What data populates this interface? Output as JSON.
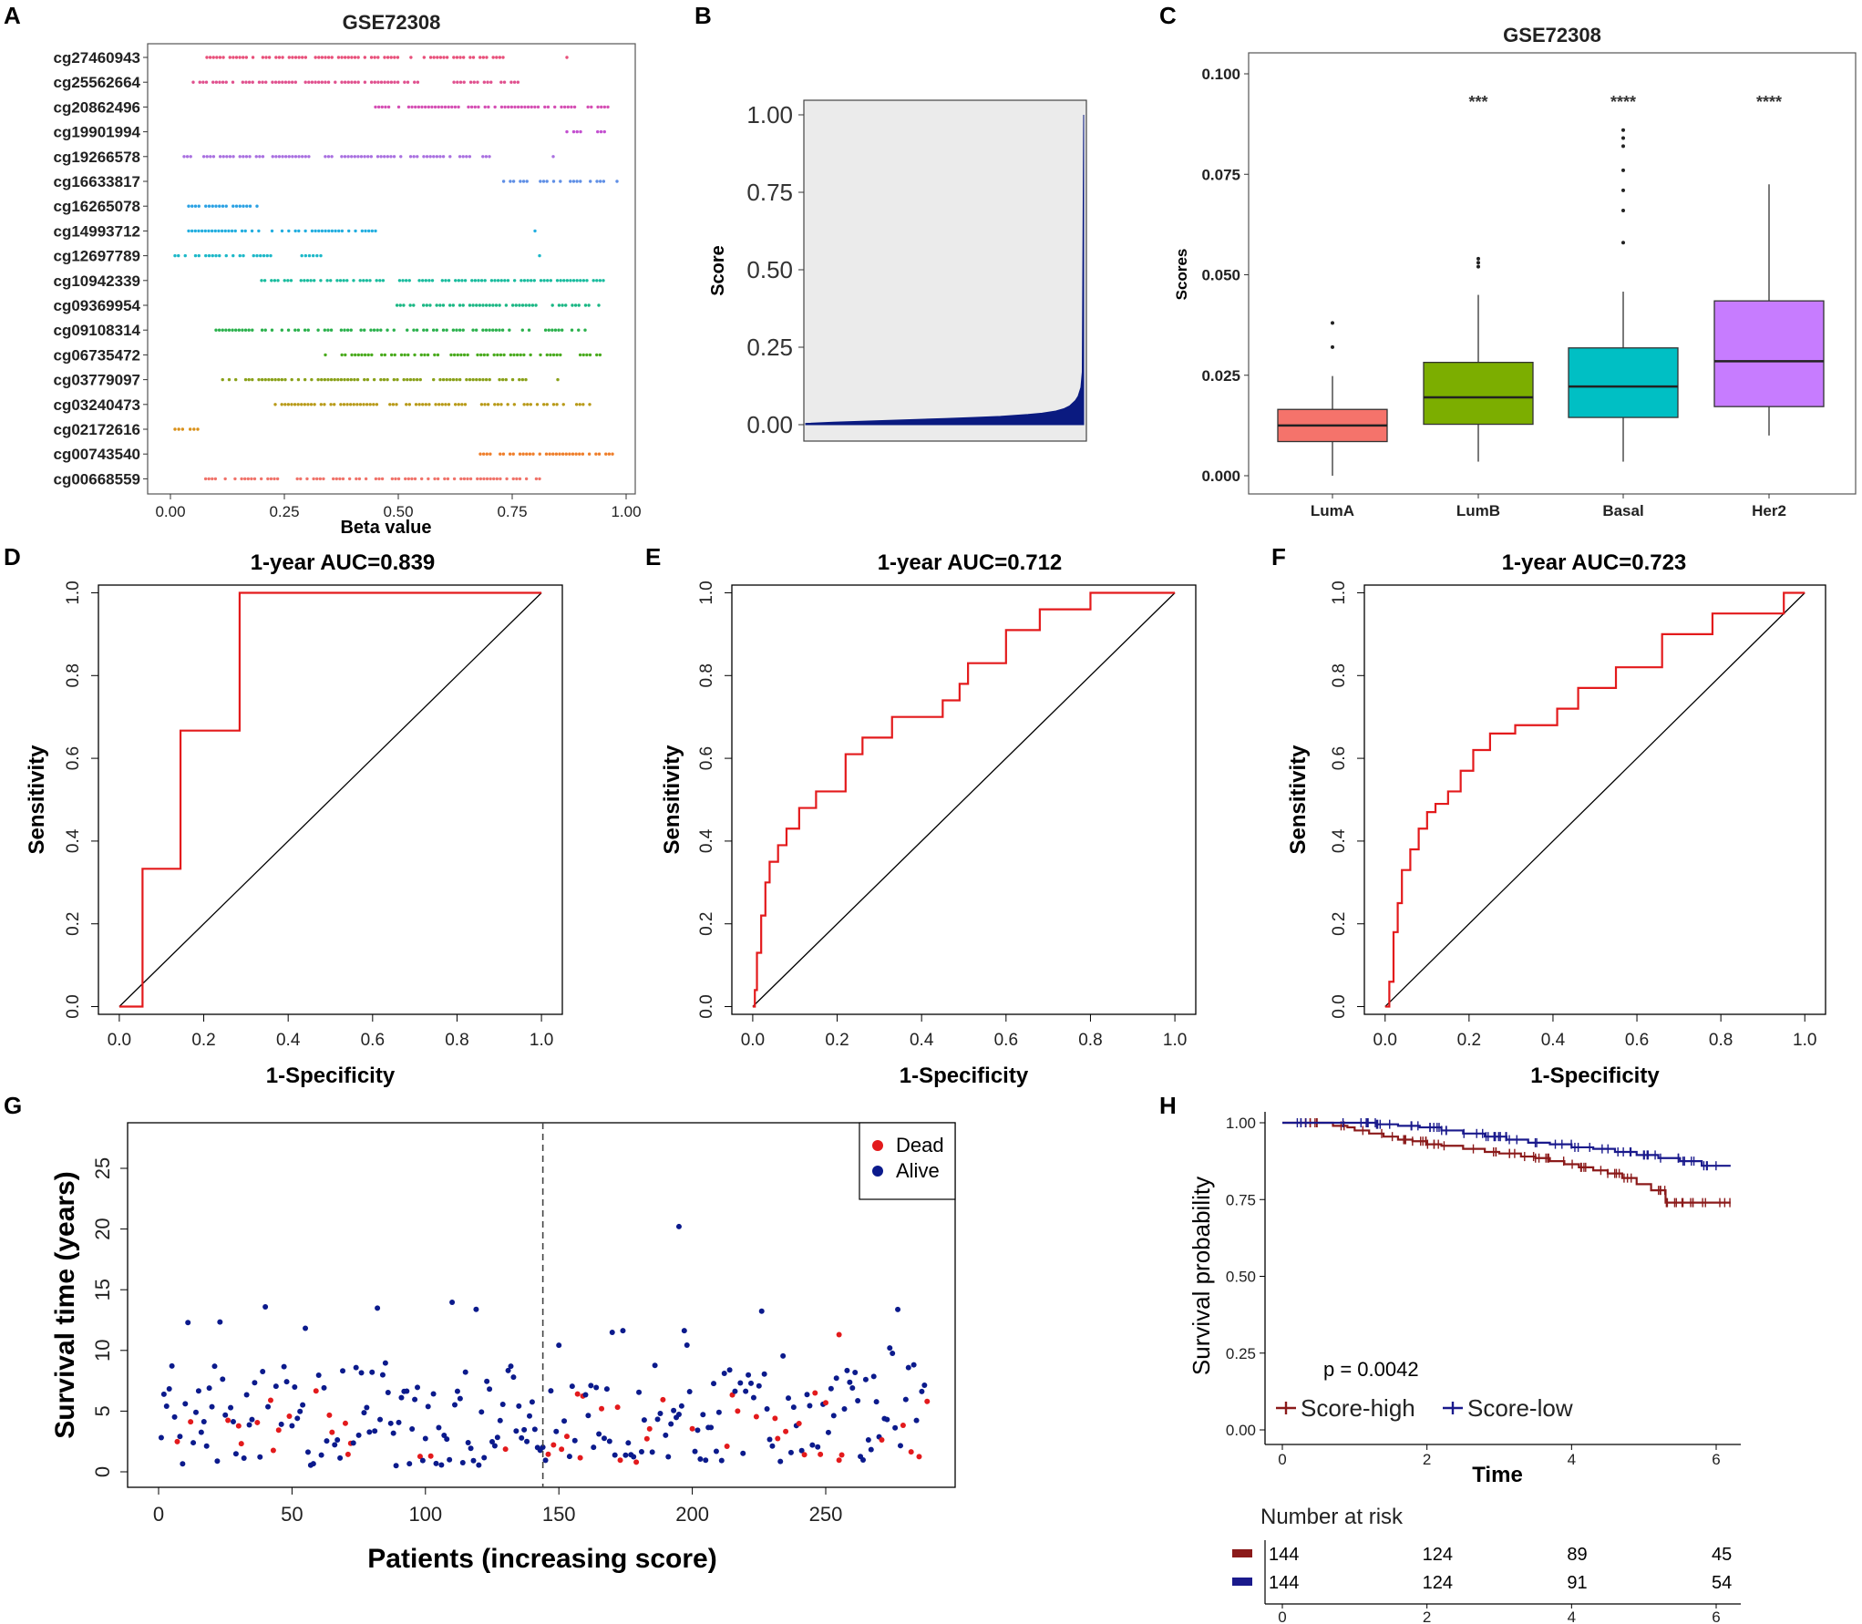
{
  "panels": {
    "A": {
      "label": "A"
    },
    "B": {
      "label": "B"
    },
    "C": {
      "label": "C"
    },
    "D": {
      "label": "D"
    },
    "E": {
      "label": "E"
    },
    "F": {
      "label": "F"
    },
    "G": {
      "label": "G"
    },
    "H": {
      "label": "H"
    }
  },
  "chart_data": [
    {
      "id": "A",
      "type": "scatter",
      "title": "GSE72308",
      "xlabel": "Beta value",
      "ylabel": "",
      "xlim": [
        0,
        1
      ],
      "xticks": [
        "0.00",
        "0.25",
        "0.50",
        "0.75",
        "1.00"
      ],
      "rows": [
        {
          "name": "cg27460943",
          "color": "#e8507a",
          "ranges": [
            [
              0.08,
              0.73
            ],
            [
              0.87,
              0.87
            ]
          ]
        },
        {
          "name": "cg25562664",
          "color": "#e0508e",
          "ranges": [
            [
              0.05,
              0.55
            ],
            [
              0.6,
              0.77
            ]
          ]
        },
        {
          "name": "cg20862496",
          "color": "#d54fb4",
          "ranges": [
            [
              0.45,
              0.96
            ]
          ]
        },
        {
          "name": "cg19901994",
          "color": "#c34fd0",
          "ranges": [
            [
              0.87,
              0.96
            ]
          ]
        },
        {
          "name": "cg19266578",
          "color": "#a970e0",
          "ranges": [
            [
              0.03,
              0.7
            ],
            [
              0.84,
              0.84
            ]
          ]
        },
        {
          "name": "cg16633817",
          "color": "#5f8fe6",
          "ranges": [
            [
              0.68,
              0.98
            ]
          ]
        },
        {
          "name": "cg16265078",
          "color": "#2aa1e3",
          "ranges": [
            [
              0.04,
              0.19
            ]
          ]
        },
        {
          "name": "cg14993712",
          "color": "#22aee0",
          "ranges": [
            [
              0.04,
              0.45
            ],
            [
              0.8,
              0.8
            ]
          ]
        },
        {
          "name": "cg12697789",
          "color": "#1db8c8",
          "ranges": [
            [
              0.01,
              0.22
            ],
            [
              0.28,
              0.33
            ],
            [
              0.81,
              0.81
            ]
          ]
        },
        {
          "name": "cg10942339",
          "color": "#19bc9e",
          "ranges": [
            [
              0.2,
              0.95
            ]
          ]
        },
        {
          "name": "cg09369954",
          "color": "#1ab784",
          "ranges": [
            [
              0.49,
              0.94
            ]
          ]
        },
        {
          "name": "cg09108314",
          "color": "#2ab14c",
          "ranges": [
            [
              0.1,
              0.91
            ]
          ]
        },
        {
          "name": "cg06735472",
          "color": "#4aab1e",
          "ranges": [
            [
              0.34,
              0.95
            ]
          ]
        },
        {
          "name": "cg03779097",
          "color": "#8aa11a",
          "ranges": [
            [
              0.1,
              0.78
            ],
            [
              0.85,
              0.85
            ]
          ]
        },
        {
          "name": "cg03240473",
          "color": "#b89a18",
          "ranges": [
            [
              0.23,
              0.92
            ]
          ]
        },
        {
          "name": "cg02172616",
          "color": "#d99018",
          "ranges": [
            [
              0.01,
              0.06
            ]
          ]
        },
        {
          "name": "cg00743540",
          "color": "#ef7e2a",
          "ranges": [
            [
              0.68,
              0.97
            ]
          ]
        },
        {
          "name": "cg00668559",
          "color": "#f0736a",
          "ranges": [
            [
              0.07,
              0.81
            ]
          ]
        }
      ]
    },
    {
      "id": "B",
      "type": "area",
      "title": "",
      "xlabel": "",
      "ylabel": "Score",
      "ylim": [
        0,
        1
      ],
      "yticks": [
        "0.00",
        "0.25",
        "0.50",
        "0.75",
        "1.00"
      ],
      "x": [
        0,
        0.1,
        0.2,
        0.3,
        0.4,
        0.5,
        0.6,
        0.7,
        0.8,
        0.85,
        0.9,
        0.93,
        0.95,
        0.97,
        0.98,
        0.99,
        0.995,
        1.0
      ],
      "y": [
        0.004,
        0.008,
        0.011,
        0.014,
        0.017,
        0.02,
        0.023,
        0.027,
        0.033,
        0.037,
        0.044,
        0.052,
        0.061,
        0.078,
        0.092,
        0.12,
        0.17,
        1.0
      ],
      "color": "#0a1a80"
    },
    {
      "id": "C",
      "type": "box",
      "title": "GSE72308",
      "xlabel": "",
      "ylabel": "Scores",
      "ylim": [
        -0.005,
        0.105
      ],
      "yticks": [
        "0.000",
        "0.025",
        "0.050",
        "0.075",
        "0.100"
      ],
      "categories": [
        "LumA",
        "LumB",
        "Basal",
        "Her2"
      ],
      "boxes": [
        {
          "q1": 0.0085,
          "median": 0.0125,
          "q3": 0.0165,
          "low": 0.0,
          "high": 0.0248,
          "outliers": [
            0.032,
            0.038
          ],
          "color": "#f5736b",
          "sig": ""
        },
        {
          "q1": 0.0128,
          "median": 0.0195,
          "q3": 0.0282,
          "low": 0.0035,
          "high": 0.045,
          "outliers": [
            0.052,
            0.053,
            0.054
          ],
          "color": "#7cae00",
          "sig": "***"
        },
        {
          "q1": 0.0145,
          "median": 0.0222,
          "q3": 0.0318,
          "low": 0.0035,
          "high": 0.0458,
          "outliers": [
            0.058,
            0.066,
            0.071,
            0.076,
            0.082,
            0.084,
            0.086
          ],
          "color": "#00bfc4",
          "sig": "****"
        },
        {
          "q1": 0.0172,
          "median": 0.0285,
          "q3": 0.0435,
          "low": 0.01,
          "high": 0.0725,
          "outliers": [],
          "color": "#c77cff",
          "sig": "****"
        }
      ]
    },
    {
      "id": "D",
      "type": "line",
      "title": "1-year AUC=0.839",
      "xlabel": "1-Specificity",
      "ylabel": "Sensitivity",
      "xlim": [
        0,
        1
      ],
      "ylim": [
        0,
        1
      ],
      "xticks": [
        "0.0",
        "0.2",
        "0.4",
        "0.6",
        "0.8",
        "1.0"
      ],
      "yticks": [
        "0.0",
        "0.2",
        "0.4",
        "0.6",
        "0.8",
        "1.0"
      ],
      "x": [
        0,
        0.055,
        0.055,
        0.145,
        0.145,
        0.285,
        0.285,
        1.0
      ],
      "y": [
        0,
        0,
        0.333,
        0.333,
        0.667,
        0.667,
        1.0,
        1.0
      ],
      "color": "#e31a1c"
    },
    {
      "id": "E",
      "type": "line",
      "title": "1-year AUC=0.712",
      "xlabel": "1-Specificity",
      "ylabel": "Sensitivity",
      "xlim": [
        0,
        1
      ],
      "ylim": [
        0,
        1
      ],
      "xticks": [
        "0.0",
        "0.2",
        "0.4",
        "0.6",
        "0.8",
        "1.0"
      ],
      "yticks": [
        "0.0",
        "0.2",
        "0.4",
        "0.6",
        "0.8",
        "1.0"
      ],
      "x": [
        0,
        0.005,
        0.005,
        0.01,
        0.01,
        0.02,
        0.02,
        0.03,
        0.03,
        0.04,
        0.04,
        0.06,
        0.06,
        0.08,
        0.08,
        0.11,
        0.11,
        0.15,
        0.15,
        0.22,
        0.22,
        0.26,
        0.26,
        0.33,
        0.33,
        0.45,
        0.45,
        0.49,
        0.49,
        0.51,
        0.51,
        0.6,
        0.6,
        0.68,
        0.68,
        0.8,
        0.8,
        0.95,
        0.95,
        1.0
      ],
      "y": [
        0,
        0,
        0.04,
        0.04,
        0.13,
        0.13,
        0.22,
        0.22,
        0.3,
        0.3,
        0.35,
        0.35,
        0.39,
        0.39,
        0.43,
        0.43,
        0.48,
        0.48,
        0.52,
        0.52,
        0.61,
        0.61,
        0.65,
        0.65,
        0.7,
        0.7,
        0.74,
        0.74,
        0.78,
        0.78,
        0.83,
        0.83,
        0.91,
        0.91,
        0.96,
        0.96,
        1.0,
        1.0,
        1.0,
        1.0
      ],
      "color": "#e31a1c"
    },
    {
      "id": "F",
      "type": "line",
      "title": "1-year AUC=0.723",
      "xlabel": "1-Specificity",
      "ylabel": "Sensitivity",
      "xlim": [
        0,
        1
      ],
      "ylim": [
        0,
        1
      ],
      "xticks": [
        "0.0",
        "0.2",
        "0.4",
        "0.6",
        "0.8",
        "1.0"
      ],
      "yticks": [
        "0.0",
        "0.2",
        "0.4",
        "0.6",
        "0.8",
        "1.0"
      ],
      "x": [
        0,
        0.01,
        0.01,
        0.02,
        0.02,
        0.03,
        0.03,
        0.04,
        0.04,
        0.06,
        0.06,
        0.08,
        0.08,
        0.1,
        0.1,
        0.12,
        0.12,
        0.15,
        0.15,
        0.18,
        0.18,
        0.21,
        0.21,
        0.25,
        0.25,
        0.31,
        0.31,
        0.41,
        0.41,
        0.46,
        0.46,
        0.55,
        0.55,
        0.66,
        0.66,
        0.78,
        0.78,
        0.95,
        0.95,
        1.0
      ],
      "y": [
        0,
        0,
        0.06,
        0.06,
        0.18,
        0.18,
        0.25,
        0.25,
        0.33,
        0.33,
        0.38,
        0.38,
        0.43,
        0.43,
        0.47,
        0.47,
        0.49,
        0.49,
        0.52,
        0.52,
        0.57,
        0.57,
        0.62,
        0.62,
        0.66,
        0.66,
        0.68,
        0.68,
        0.72,
        0.72,
        0.77,
        0.77,
        0.82,
        0.82,
        0.9,
        0.9,
        0.95,
        0.95,
        1.0,
        1.0
      ],
      "color": "#e31a1c"
    },
    {
      "id": "G",
      "type": "scatter",
      "title": "",
      "xlabel": "Patients (increasing score)",
      "ylabel": "Survival time (years)",
      "xlim": [
        -5,
        300
      ],
      "ylim": [
        -1,
        28
      ],
      "xticks": [
        0,
        50,
        100,
        150,
        200,
        250
      ],
      "yticks": [
        0,
        5,
        10,
        15,
        20,
        25
      ],
      "cutoff": 144,
      "legend": [
        {
          "label": "Dead",
          "color": "#e31a1c"
        },
        {
          "label": "Alive",
          "color": "#0b1a8c"
        }
      ],
      "n_patients": 288,
      "colors": {
        "dead": "#e31a1c",
        "alive": "#0b1a8c"
      }
    },
    {
      "id": "H",
      "type": "line",
      "title": "",
      "xlabel": "Time",
      "ylabel": "Survival probability",
      "xlim": [
        0,
        6.3
      ],
      "ylim": [
        0,
        1
      ],
      "xticks": [
        0,
        2,
        4,
        6
      ],
      "yticks": [
        "0.00",
        "0.25",
        "0.50",
        "0.75",
        "1.00"
      ],
      "pvalue": "p = 0.0042",
      "series": [
        {
          "name": "Score-high",
          "color": "#8b1a1a",
          "x": [
            0,
            0.7,
            0.9,
            1.0,
            1.2,
            1.4,
            1.6,
            1.8,
            2.0,
            2.2,
            2.5,
            2.8,
            3.0,
            3.3,
            3.5,
            3.7,
            3.9,
            4.1,
            4.3,
            4.5,
            4.7,
            4.9,
            5.1,
            5.3,
            6.2
          ],
          "y": [
            1.0,
            0.99,
            0.985,
            0.975,
            0.965,
            0.955,
            0.945,
            0.94,
            0.93,
            0.925,
            0.915,
            0.905,
            0.9,
            0.89,
            0.885,
            0.875,
            0.865,
            0.855,
            0.845,
            0.835,
            0.82,
            0.8,
            0.78,
            0.74,
            0.74
          ]
        },
        {
          "name": "Score-low",
          "color": "#1a1a8c",
          "x": [
            0,
            1.0,
            1.3,
            1.6,
            1.9,
            2.2,
            2.5,
            2.8,
            3.1,
            3.4,
            3.7,
            4.0,
            4.3,
            4.6,
            4.9,
            5.2,
            5.5,
            5.8,
            6.2
          ],
          "y": [
            1.0,
            1.0,
            0.995,
            0.99,
            0.985,
            0.975,
            0.965,
            0.955,
            0.945,
            0.935,
            0.93,
            0.92,
            0.915,
            0.905,
            0.895,
            0.885,
            0.875,
            0.86,
            0.86
          ]
        }
      ],
      "risk_table": {
        "title": "Number at risk",
        "times": [
          0,
          2,
          4,
          6
        ],
        "rows": [
          {
            "color": "#8b1a1a",
            "values": [
              "144",
              "124",
              "89",
              "45"
            ]
          },
          {
            "color": "#1a1a8c",
            "values": [
              "144",
              "124",
              "91",
              "54"
            ]
          }
        ]
      }
    }
  ]
}
